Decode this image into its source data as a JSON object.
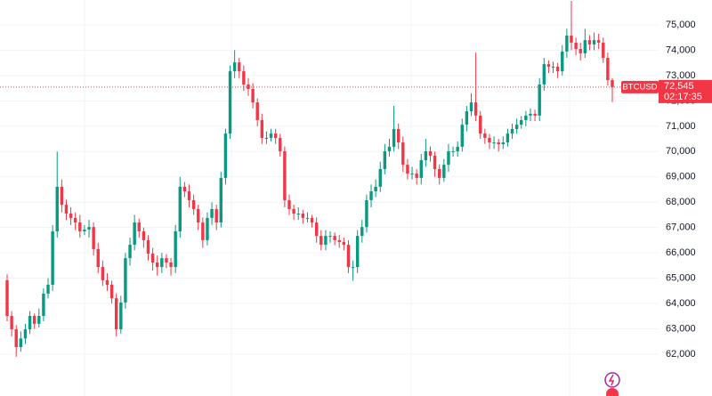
{
  "chart_data": {
    "type": "candlestick",
    "symbol": "BTCUSD",
    "up_color": "#089981",
    "down_color": "#f23645",
    "grid": true,
    "ylim": [
      60348,
      75984
    ],
    "yticks": [
      {
        "value": 62000,
        "label": "62,000"
      },
      {
        "value": 63000,
        "label": "63,000"
      },
      {
        "value": 64000,
        "label": "64,000"
      },
      {
        "value": 65000,
        "label": "65,000"
      },
      {
        "value": 66000,
        "label": "66,000"
      },
      {
        "value": 67000,
        "label": "67,000"
      },
      {
        "value": 68000,
        "label": "68,000"
      },
      {
        "value": 69000,
        "label": "69,000"
      },
      {
        "value": 70000,
        "label": "70,000"
      },
      {
        "value": 71000,
        "label": "71,000"
      },
      {
        "value": 72000,
        "label": "72,000"
      },
      {
        "value": 73000,
        "label": "73,000"
      },
      {
        "value": 74000,
        "label": "74,000"
      },
      {
        "value": 75000,
        "label": "75,000"
      }
    ],
    "last_price": {
      "value": 72545,
      "label": "72,545"
    },
    "countdown": "02:17:35",
    "open": [
      64920,
      63510,
      62980,
      62280,
      62620,
      62980,
      63510,
      63200,
      63510,
      64390,
      64740,
      66850,
      68610,
      67900,
      67550,
      67380,
      67200,
      66850,
      66920,
      67020,
      66150,
      65440,
      64920,
      64740,
      64210,
      62980,
      64040,
      65790,
      66320,
      67200,
      66850,
      66500,
      65970,
      65620,
      65440,
      65790,
      65620,
      65440,
      66850,
      68610,
      68430,
      68080,
      67730,
      67200,
      66500,
      67380,
      67730,
      67200,
      68960,
      70710,
      73170,
      73520,
      73170,
      72650,
      72470,
      71940,
      71240,
      70540,
      70540,
      70710,
      70540,
      70010,
      68080,
      67730,
      67550,
      67550,
      67380,
      67380,
      67200,
      66670,
      66320,
      66670,
      66670,
      66500,
      66430,
      66320,
      65440,
      65440,
      66670,
      67020,
      68080,
      68430,
      68610,
      69310,
      70010,
      70190,
      70890,
      70360,
      69480,
      69130,
      69130,
      68960,
      69660,
      70010,
      69840,
      69310,
      68960,
      69480,
      70010,
      70010,
      70190,
      71060,
      71590,
      71940,
      71420,
      70710,
      70540,
      70360,
      70360,
      70290,
      70360,
      70710,
      70890,
      71060,
      71240,
      71420,
      71490,
      71420,
      72650,
      73450,
      73350,
      73350,
      73170,
      73950,
      74580,
      74300,
      74050,
      73880,
      74400,
      74230,
      74400,
      74300,
      73700,
      72820
    ],
    "high": [
      65150,
      63700,
      63150,
      62900,
      63200,
      63700,
      63600,
      63800,
      64600,
      65000,
      67100,
      70000,
      68900,
      68100,
      67800,
      67600,
      67500,
      67100,
      67300,
      67200,
      66400,
      65700,
      65200,
      64900,
      64400,
      64300,
      66000,
      66600,
      67500,
      67350,
      67000,
      66700,
      66200,
      65900,
      66000,
      65950,
      65800,
      67100,
      69000,
      68800,
      68700,
      68300,
      67900,
      67400,
      67600,
      68000,
      67900,
      69200,
      70900,
      73400,
      74000,
      73700,
      73400,
      72900,
      72700,
      72100,
      71500,
      70800,
      70900,
      70900,
      70700,
      70200,
      68300,
      67900,
      67800,
      67700,
      67600,
      67500,
      67400,
      66900,
      66900,
      66850,
      66800,
      66700,
      66600,
      66500,
      65700,
      66900,
      67300,
      68300,
      68700,
      68900,
      69600,
      70300,
      70500,
      71800,
      71100,
      70600,
      69700,
      69400,
      69300,
      69900,
      70500,
      70200,
      70000,
      69500,
      69700,
      70300,
      70200,
      70400,
      71300,
      71800,
      72300,
      73900,
      71600,
      70900,
      70700,
      70600,
      70500,
      70600,
      70900,
      71100,
      71300,
      71400,
      71600,
      71700,
      71650,
      72900,
      73700,
      73600,
      73550,
      73500,
      74200,
      74850,
      75950,
      74500,
      74300,
      74850,
      74600,
      74700,
      74650,
      74500,
      73900,
      72900
    ],
    "low": [
      63300,
      62700,
      61900,
      62100,
      62400,
      62800,
      63000,
      63050,
      63300,
      64200,
      64500,
      66600,
      67600,
      67300,
      67100,
      66900,
      66600,
      66700,
      66600,
      65900,
      65200,
      64700,
      64500,
      64000,
      62700,
      62800,
      63800,
      65500,
      66100,
      66600,
      66200,
      65700,
      65300,
      65100,
      65200,
      65400,
      65100,
      65200,
      66600,
      68200,
      67800,
      67500,
      66900,
      66200,
      66300,
      67100,
      66900,
      67000,
      68700,
      70500,
      72900,
      72900,
      72400,
      72200,
      71700,
      71000,
      70300,
      70300,
      70400,
      70300,
      69800,
      67800,
      67500,
      67300,
      67300,
      67150,
      67200,
      67000,
      66400,
      66100,
      66100,
      66400,
      66300,
      66200,
      66100,
      65200,
      64900,
      65200,
      66400,
      66800,
      67800,
      68200,
      68400,
      69100,
      69800,
      70000,
      70100,
      69200,
      68900,
      68900,
      68700,
      68700,
      69400,
      69600,
      69000,
      68700,
      68800,
      69200,
      69800,
      69800,
      70000,
      70800,
      71400,
      71200,
      70500,
      70300,
      70100,
      70100,
      70000,
      70100,
      70200,
      70500,
      70700,
      70900,
      71000,
      71200,
      71200,
      71200,
      72400,
      73100,
      73100,
      72900,
      73000,
      73700,
      74000,
      73800,
      73600,
      73700,
      74000,
      74000,
      74050,
      73500,
      72600,
      71950
    ],
    "close": [
      63510,
      62980,
      62280,
      62620,
      62980,
      63510,
      63200,
      63510,
      64390,
      64740,
      66850,
      68610,
      67900,
      67550,
      67380,
      67200,
      66850,
      66920,
      67020,
      66150,
      65440,
      64920,
      64740,
      64210,
      62980,
      64040,
      65790,
      66320,
      67200,
      66850,
      66500,
      65970,
      65620,
      65440,
      65790,
      65620,
      65440,
      66850,
      68610,
      68430,
      68080,
      67730,
      67200,
      66500,
      67380,
      67730,
      67200,
      68960,
      70710,
      73170,
      73520,
      73170,
      72650,
      72470,
      71940,
      71240,
      70540,
      70540,
      70710,
      70540,
      70010,
      68080,
      67730,
      67550,
      67550,
      67380,
      67380,
      67200,
      66670,
      66320,
      66670,
      66670,
      66500,
      66430,
      66320,
      65440,
      65440,
      66670,
      67020,
      68080,
      68430,
      68610,
      69310,
      70010,
      70190,
      70890,
      70360,
      69480,
      69130,
      69130,
      68960,
      69660,
      70010,
      69840,
      69310,
      68960,
      69480,
      70010,
      70010,
      70190,
      71060,
      71590,
      71940,
      71420,
      70710,
      70540,
      70360,
      70360,
      70290,
      70360,
      70710,
      70890,
      71060,
      71240,
      71420,
      71490,
      71420,
      72650,
      73450,
      73350,
      73350,
      73170,
      73950,
      74580,
      74300,
      74050,
      73880,
      74400,
      74230,
      74400,
      74300,
      73700,
      72820,
      72545
    ]
  }
}
